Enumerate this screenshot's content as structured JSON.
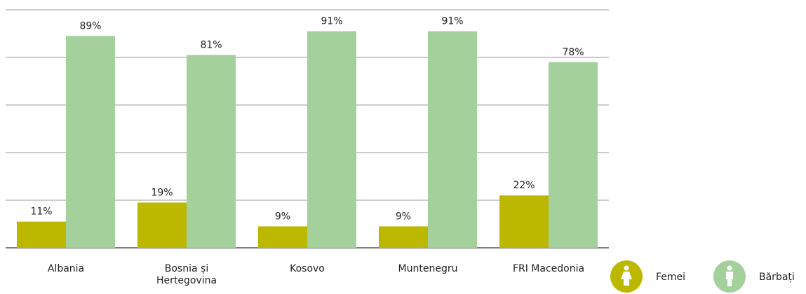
{
  "chart_data": {
    "type": "bar",
    "categories": [
      "Albania",
      "Bosnia și Hertegovina",
      "Kosovo",
      "Muntenegru",
      "FRI Macedonia"
    ],
    "series": [
      {
        "name": "Femei",
        "color": "#bcb800",
        "values": [
          11,
          19,
          9,
          9,
          22
        ],
        "value_labels": [
          "11%",
          "19%",
          "9%",
          "9%",
          "22%"
        ]
      },
      {
        "name": "Bărbați",
        "color": "#a3d09b",
        "values": [
          89,
          81,
          91,
          91,
          78
        ],
        "value_labels": [
          "89%",
          "81%",
          "91%",
          "91%",
          "78%"
        ]
      }
    ],
    "ylim": [
      0,
      100
    ],
    "yticks": [
      0,
      20,
      40,
      60,
      80,
      100
    ],
    "grid": true,
    "legend": "bottom-right"
  }
}
